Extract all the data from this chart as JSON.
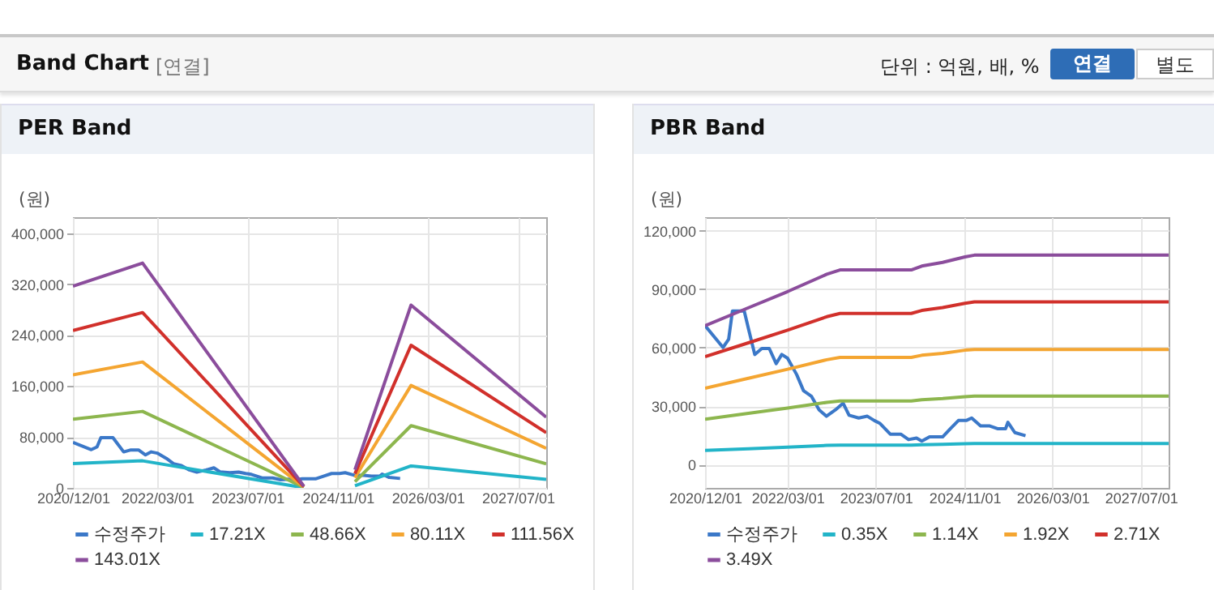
{
  "chart_data": [
    {
      "type": "line",
      "title": "PER Band",
      "ylabel": "(원)",
      "annotations": [
        "Band Chart",
        "[연결]",
        "단위 : 억원, 배, %",
        "연결",
        "별도"
      ],
      "xlim": [
        "2020-12-01",
        "2027-12-01"
      ],
      "xticks": [
        {
          "value": "2020-12-01",
          "label": "2020/12/01"
        },
        {
          "value": "2022-03-01",
          "label": "2022/03/01"
        },
        {
          "value": "2023-07-01",
          "label": "2023/07/01"
        },
        {
          "value": "2024-11-01",
          "label": "2024/11/01"
        },
        {
          "value": "2026-03-01",
          "label": "2026/03/01"
        },
        {
          "value": "2027-07-01",
          "label": "2027/07/01"
        }
      ],
      "ylim": [
        0,
        425000
      ],
      "yticks": [
        0,
        {
          "value": 80000,
          "label": "80,000"
        },
        {
          "value": 160000,
          "label": "160,000"
        },
        {
          "value": 240000,
          "label": "240,000"
        },
        {
          "value": 320000,
          "label": "320,000"
        },
        {
          "value": 400000,
          "label": "400,000"
        }
      ],
      "grid": true,
      "legend": "bottom",
      "series": [
        {
          "name": "수정주가",
          "color": "#3b78c8",
          "x": [
            "2020-12-01",
            "2021-03-10",
            "2021-04-10",
            "2021-05-01",
            "2021-07-05",
            "2021-07-28",
            "2021-09-01",
            "2021-10-10",
            "2021-11-20",
            "2021-12-28",
            "2022-01-28",
            "2022-03-01",
            "2022-04-20",
            "2022-05-28",
            "2022-07-10",
            "2022-08-22",
            "2022-10-01",
            "2022-11-20",
            "2023-01-01",
            "2023-02-03",
            "2023-03-28",
            "2023-05-15",
            "2023-06-22",
            "2023-07-22",
            "2023-09-18",
            "2023-11-15",
            "2023-12-28",
            "2024-02-10",
            "2024-03-10",
            "2024-04-22",
            "2024-07-03",
            "2024-08-15",
            "2024-09-28",
            "2024-11-10",
            "2024-12-10",
            "2025-01-28",
            "2025-03-20",
            "2025-05-01",
            "2025-06-15",
            "2025-06-28",
            "2025-08-05",
            "2025-10-03"
          ],
          "values": [
            71300,
            60100,
            64300,
            78800,
            78800,
            69900,
            56500,
            59600,
            59600,
            51800,
            56500,
            54600,
            46200,
            37900,
            35100,
            28100,
            24800,
            28100,
            31500,
            25300,
            23900,
            24800,
            22600,
            21200,
            15600,
            15600,
            12800,
            13600,
            12000,
            14200,
            14200,
            18400,
            22600,
            22600,
            23900,
            19800,
            19800,
            18400,
            18400,
            21700,
            16400,
            14800
          ]
        },
        {
          "name": "17.21X",
          "color": "#22b4c8",
          "x": [
            "2020-12-01",
            "2021-12-12",
            "2024-05-01",
            "2024-09-01",
            "2025-02-01",
            "2025-12-01",
            "2027-12-01"
          ],
          "values": [
            38100,
            42500,
            300,
            null,
            3400,
            34500,
            13400
          ]
        },
        {
          "name": "48.66X",
          "color": "#8db64e",
          "x": [
            "2020-12-01",
            "2021-12-12",
            "2024-05-01",
            "2024-09-01",
            "2025-02-01",
            "2025-12-01",
            "2027-12-01"
          ],
          "values": [
            107800,
            120100,
            900,
            null,
            9700,
            97700,
            37800
          ]
        },
        {
          "name": "80.11X",
          "color": "#f4a531",
          "x": [
            "2020-12-01",
            "2021-12-12",
            "2024-05-01",
            "2024-09-01",
            "2025-02-01",
            "2025-12-01",
            "2027-12-01"
          ],
          "values": [
            177400,
            197700,
            1400,
            null,
            16000,
            160800,
            62200
          ]
        },
        {
          "name": "111.56X",
          "color": "#d1302b",
          "x": [
            "2020-12-01",
            "2021-12-12",
            "2024-05-01",
            "2024-09-01",
            "2025-02-01",
            "2025-12-01",
            "2027-12-01"
          ],
          "values": [
            247100,
            275300,
            2000,
            null,
            22300,
            223900,
            86600
          ]
        },
        {
          "name": "143.01X",
          "color": "#8b4d9c",
          "x": [
            "2020-12-01",
            "2021-12-12",
            "2024-05-01",
            "2024-09-01",
            "2025-02-01",
            "2025-12-01",
            "2027-12-01"
          ],
          "values": [
            316800,
            353000,
            2600,
            null,
            28600,
            287000,
            111000
          ]
        }
      ]
    },
    {
      "type": "line",
      "title": "PBR Band",
      "ylabel": "(원)",
      "xlim": [
        "2020-12-01",
        "2027-12-01"
      ],
      "xticks": [
        {
          "value": "2020-12-01",
          "label": "2020/12/01"
        },
        {
          "value": "2022-03-01",
          "label": "2022/03/01"
        },
        {
          "value": "2023-07-01",
          "label": "2023/07/01"
        },
        {
          "value": "2024-11-01",
          "label": "2024/11/01"
        },
        {
          "value": "2026-03-01",
          "label": "2026/03/01"
        },
        {
          "value": "2027-07-01",
          "label": "2027/07/01"
        }
      ],
      "ylim": [
        -12000,
        127000
      ],
      "yticks": [
        0,
        {
          "value": 30000,
          "label": "30,000"
        },
        {
          "value": 60000,
          "label": "60,000"
        },
        {
          "value": 90000,
          "label": "90,000"
        },
        {
          "value": 120000,
          "label": "120,000"
        }
      ],
      "grid": true,
      "legend": "bottom",
      "series": [
        {
          "name": "수정주가",
          "color": "#3b78c8",
          "x": [
            "2020-12-01",
            "2021-03-10",
            "2021-04-10",
            "2021-05-01",
            "2021-07-05",
            "2021-07-28",
            "2021-09-01",
            "2021-10-10",
            "2021-11-20",
            "2021-12-28",
            "2022-01-28",
            "2022-03-01",
            "2022-04-20",
            "2022-05-28",
            "2022-07-10",
            "2022-08-22",
            "2022-10-01",
            "2022-11-20",
            "2023-01-01",
            "2023-02-03",
            "2023-03-28",
            "2023-05-15",
            "2023-06-22",
            "2023-07-22",
            "2023-09-18",
            "2023-11-15",
            "2023-12-28",
            "2024-02-10",
            "2024-03-10",
            "2024-04-22",
            "2024-07-03",
            "2024-08-15",
            "2024-09-28",
            "2024-11-10",
            "2024-12-10",
            "2025-01-28",
            "2025-03-20",
            "2025-05-01",
            "2025-06-15",
            "2025-06-28",
            "2025-08-05",
            "2025-10-03"
          ],
          "values": [
            71300,
            60100,
            64300,
            78800,
            78800,
            69900,
            56500,
            59600,
            59600,
            51800,
            56500,
            54600,
            46200,
            37900,
            35100,
            28100,
            24800,
            28100,
            31500,
            25300,
            23900,
            24800,
            22600,
            21200,
            15600,
            15600,
            12800,
            13600,
            12000,
            14200,
            14200,
            18400,
            22600,
            22600,
            23900,
            19800,
            19800,
            18400,
            18400,
            21700,
            16400,
            14800
          ]
        },
        {
          "name": "0.35X",
          "color": "#22b4c8",
          "x": [
            "2020-12-01",
            "2021-07-28",
            "2022-03-01",
            "2022-10-03",
            "2022-12-15",
            "2024-01-12",
            "2024-03-10",
            "2024-07-03",
            "2024-11-03",
            "2024-12-25",
            "2027-12-01"
          ],
          "values": [
            7200,
            8100,
            8900,
            9800,
            10000,
            10000,
            10200,
            10400,
            10700,
            10800,
            10800
          ]
        },
        {
          "name": "1.14X",
          "color": "#8db64e",
          "x": [
            "2020-12-01",
            "2021-07-28",
            "2022-03-01",
            "2022-10-03",
            "2022-12-15",
            "2024-01-12",
            "2024-03-10",
            "2024-07-03",
            "2024-11-03",
            "2024-12-25",
            "2027-12-01"
          ],
          "values": [
            23300,
            26300,
            29000,
            31900,
            32600,
            32600,
            33300,
            33900,
            34800,
            35100,
            35100
          ]
        },
        {
          "name": "1.92X",
          "color": "#f4a531",
          "x": [
            "2020-12-01",
            "2021-07-28",
            "2022-03-01",
            "2022-10-03",
            "2022-12-15",
            "2024-01-12",
            "2024-03-10",
            "2024-07-03",
            "2024-11-03",
            "2024-12-25",
            "2027-12-01"
          ],
          "values": [
            39200,
            44300,
            48900,
            53800,
            55000,
            55000,
            56100,
            57100,
            58700,
            59100,
            59100
          ]
        },
        {
          "name": "2.71X",
          "color": "#d1302b",
          "x": [
            "2020-12-01",
            "2021-07-28",
            "2022-03-01",
            "2022-10-03",
            "2022-12-15",
            "2024-01-12",
            "2024-03-10",
            "2024-07-03",
            "2024-11-03",
            "2024-12-25",
            "2027-12-01"
          ],
          "values": [
            55400,
            62500,
            69000,
            75900,
            77600,
            77600,
            79100,
            80600,
            82800,
            83500,
            83500
          ]
        },
        {
          "name": "3.49X",
          "color": "#8b4d9c",
          "x": [
            "2020-12-01",
            "2021-07-28",
            "2022-03-01",
            "2022-10-03",
            "2022-12-15",
            "2024-01-12",
            "2024-03-10",
            "2024-07-03",
            "2024-11-03",
            "2024-12-25",
            "2027-12-01"
          ],
          "values": [
            71300,
            80500,
            88800,
            97700,
            99900,
            99900,
            101900,
            103800,
            106600,
            107500,
            107500
          ]
        }
      ]
    }
  ]
}
